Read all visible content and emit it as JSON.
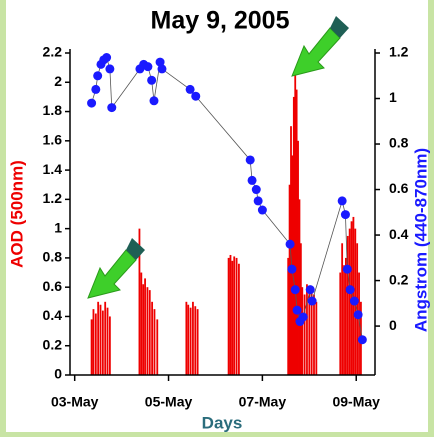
{
  "chart_data": {
    "type": "bar",
    "title": "May 9, 2005",
    "xlabel": "Days",
    "ylabel": "AOD (500nm)",
    "y2label": "Angstrom (440-870nm)",
    "xlim": [
      2.9,
      9.4
    ],
    "xticks": [
      {
        "value": 3,
        "label": "03-May"
      },
      {
        "value": 5,
        "label": "05-May"
      },
      {
        "value": 7,
        "label": "07-May"
      },
      {
        "value": 9,
        "label": "09-May"
      }
    ],
    "ylim": [
      0,
      2.2
    ],
    "yticks": [
      0,
      0.2,
      0.4,
      0.6,
      0.8,
      1,
      1.2,
      1.4,
      1.6,
      1.8,
      2,
      2.2
    ],
    "y2lim": [
      -0.215,
      1.2
    ],
    "y2ticks": [
      0,
      0.2,
      0.4,
      0.6,
      0.8,
      1,
      1.2
    ],
    "series": [
      {
        "type": "bar",
        "color": "#ee0000",
        "x": [
          3.36,
          3.4,
          3.45,
          3.5,
          3.55,
          3.6,
          3.65,
          3.7,
          3.75,
          4.38,
          4.42,
          4.46,
          4.5,
          4.55,
          4.6,
          4.65,
          4.7,
          4.76,
          5.38,
          5.42,
          5.47,
          5.52,
          5.57,
          5.62,
          6.28,
          6.32,
          6.36,
          6.4,
          6.45,
          6.5,
          7.55,
          7.58,
          7.61,
          7.64,
          7.67,
          7.7,
          7.73,
          7.76,
          7.79,
          7.82,
          7.85,
          7.9,
          7.95,
          8.0,
          8.05,
          8.1,
          8.15,
          8.66,
          8.7,
          8.74,
          8.78,
          8.82,
          8.86,
          8.9,
          8.94,
          8.98,
          9.02,
          9.06,
          9.1
        ],
        "values": [
          0.38,
          0.45,
          0.42,
          0.5,
          0.48,
          0.44,
          0.5,
          0.46,
          0.4,
          1.0,
          0.7,
          0.62,
          0.66,
          0.6,
          0.58,
          0.5,
          0.45,
          0.38,
          0.5,
          0.48,
          0.46,
          0.5,
          0.47,
          0.45,
          0.8,
          0.82,
          0.78,
          0.81,
          0.8,
          0.76,
          0.8,
          1.3,
          1.7,
          1.5,
          1.9,
          2.05,
          1.95,
          1.6,
          1.2,
          0.9,
          0.6,
          0.55,
          0.62,
          0.58,
          0.6,
          0.55,
          0.5,
          0.7,
          0.9,
          0.75,
          0.8,
          0.95,
          1.0,
          1.05,
          1.08,
          1.0,
          0.9,
          0.7,
          0.5
        ]
      },
      {
        "type": "line",
        "axis": "y2",
        "color": "#1a1aff",
        "x": [
          3.36,
          3.45,
          3.49,
          3.56,
          3.62,
          3.68,
          3.75,
          3.79,
          4.39,
          4.47,
          4.56,
          4.64,
          4.69,
          4.82,
          4.86,
          5.46,
          5.58,
          6.74,
          6.78,
          6.87,
          6.91,
          7.0,
          7.59,
          7.63,
          7.7,
          7.74,
          7.8,
          7.87,
          8.02,
          8.06,
          8.7,
          8.77,
          8.81,
          8.87,
          8.96,
          9.04,
          9.13
        ],
        "values": [
          0.98,
          1.04,
          1.1,
          1.15,
          1.17,
          1.18,
          1.13,
          0.96,
          1.13,
          1.15,
          1.14,
          1.08,
          0.99,
          1.16,
          1.13,
          1.04,
          1.01,
          0.73,
          0.64,
          0.6,
          0.55,
          0.51,
          0.36,
          0.25,
          0.16,
          0.07,
          0.02,
          0.04,
          0.16,
          0.11,
          0.55,
          0.49,
          0.25,
          0.16,
          0.11,
          0.05,
          -0.06
        ]
      }
    ]
  }
}
